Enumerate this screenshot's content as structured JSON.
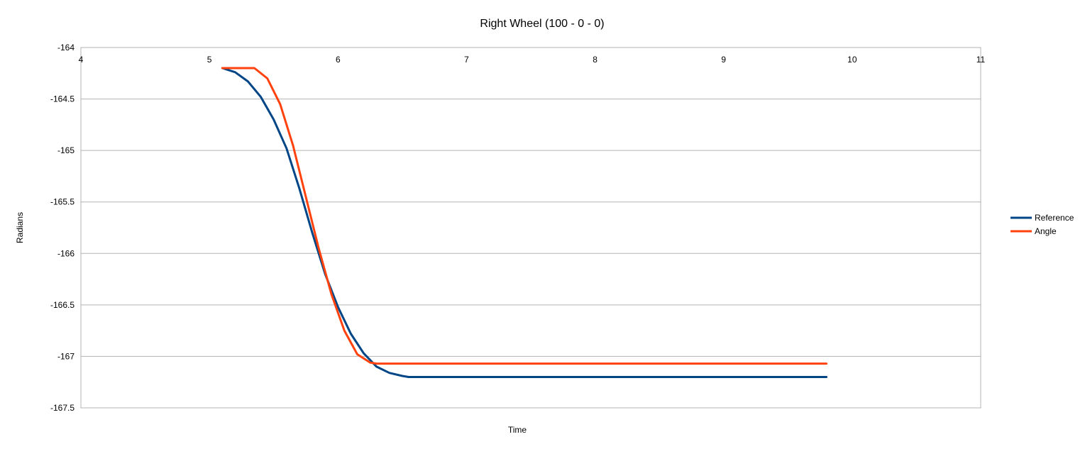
{
  "chart_data": {
    "type": "line",
    "title": "Right Wheel (100 - 0 - 0)",
    "xlabel": "Time",
    "ylabel": "Radians",
    "xlim": [
      4,
      11
    ],
    "ylim": [
      -167.5,
      -164
    ],
    "x_ticks": [
      "4",
      "5",
      "6",
      "7",
      "8",
      "9",
      "10",
      "11"
    ],
    "y_ticks": [
      "-164",
      "-164.5",
      "-165",
      "-165.5",
      "-166",
      "-166.5",
      "-167",
      "-167.5"
    ],
    "x_axis_position": "top",
    "grid": "horizontal",
    "legend_position": "right",
    "series": [
      {
        "name": "Reference",
        "color": "#004586",
        "x": [
          5.1,
          5.2,
          5.3,
          5.4,
          5.5,
          5.6,
          5.7,
          5.8,
          5.9,
          6.0,
          6.1,
          6.2,
          6.3,
          6.4,
          6.5,
          6.55,
          9.8
        ],
        "y": [
          -164.2,
          -164.24,
          -164.33,
          -164.48,
          -164.7,
          -164.98,
          -165.37,
          -165.8,
          -166.2,
          -166.52,
          -166.78,
          -166.97,
          -167.1,
          -167.16,
          -167.19,
          -167.2,
          -167.2
        ]
      },
      {
        "name": "Angle",
        "color": "#ff420e",
        "x": [
          5.1,
          5.35,
          5.45,
          5.55,
          5.65,
          5.75,
          5.85,
          5.95,
          6.05,
          6.15,
          6.25,
          6.3,
          9.8
        ],
        "y": [
          -164.2,
          -164.2,
          -164.3,
          -164.55,
          -164.95,
          -165.45,
          -165.95,
          -166.4,
          -166.75,
          -166.98,
          -167.06,
          -167.07,
          -167.07
        ]
      }
    ]
  }
}
